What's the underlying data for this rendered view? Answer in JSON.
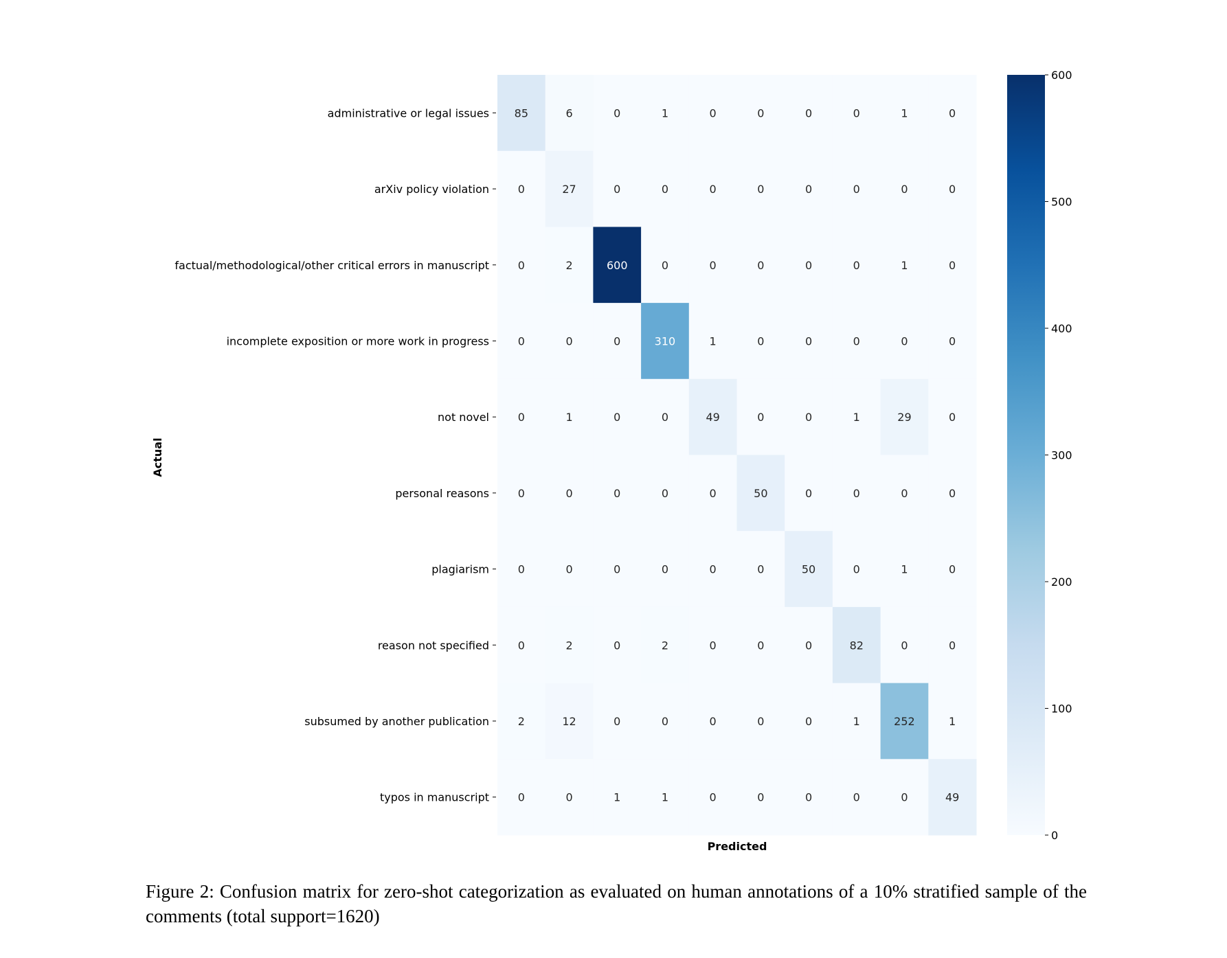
{
  "chart_data": {
    "type": "heatmap",
    "xlabel": "Predicted",
    "ylabel": "Actual",
    "row_labels": [
      "administrative or legal issues",
      "arXiv policy violation",
      "factual/methodological/other critical errors in manuscript",
      "incomplete exposition or more work in progress",
      "not novel",
      "personal reasons",
      "plagiarism",
      "reason not specified",
      "subsumed by another publication",
      "typos in manuscript"
    ],
    "column_tick_labels_visible": false,
    "matrix": [
      [
        85,
        6,
        0,
        1,
        0,
        0,
        0,
        0,
        1,
        0
      ],
      [
        0,
        27,
        0,
        0,
        0,
        0,
        0,
        0,
        0,
        0
      ],
      [
        0,
        2,
        600,
        0,
        0,
        0,
        0,
        0,
        1,
        0
      ],
      [
        0,
        0,
        0,
        310,
        1,
        0,
        0,
        0,
        0,
        0
      ],
      [
        0,
        1,
        0,
        0,
        49,
        0,
        0,
        1,
        29,
        0
      ],
      [
        0,
        0,
        0,
        0,
        0,
        50,
        0,
        0,
        0,
        0
      ],
      [
        0,
        0,
        0,
        0,
        0,
        0,
        50,
        0,
        1,
        0
      ],
      [
        0,
        2,
        0,
        2,
        0,
        0,
        0,
        82,
        0,
        0
      ],
      [
        2,
        12,
        0,
        0,
        0,
        0,
        0,
        1,
        252,
        1
      ],
      [
        0,
        0,
        1,
        1,
        0,
        0,
        0,
        0,
        0,
        49
      ]
    ],
    "colormap": "Blues",
    "color_range": [
      0,
      600
    ],
    "colorbar_ticks": [
      "0",
      "100",
      "200",
      "300",
      "400",
      "500",
      "600"
    ],
    "colors": {
      "low": "#f7fbff",
      "high": "#08306b",
      "annotation_dark": "#262626",
      "annotation_light": "#ffffff"
    }
  },
  "caption": "Figure 2: Confusion matrix for zero-shot categorization as evaluated on human annotations of a 10% stratified sample of the comments (total support=1620)"
}
